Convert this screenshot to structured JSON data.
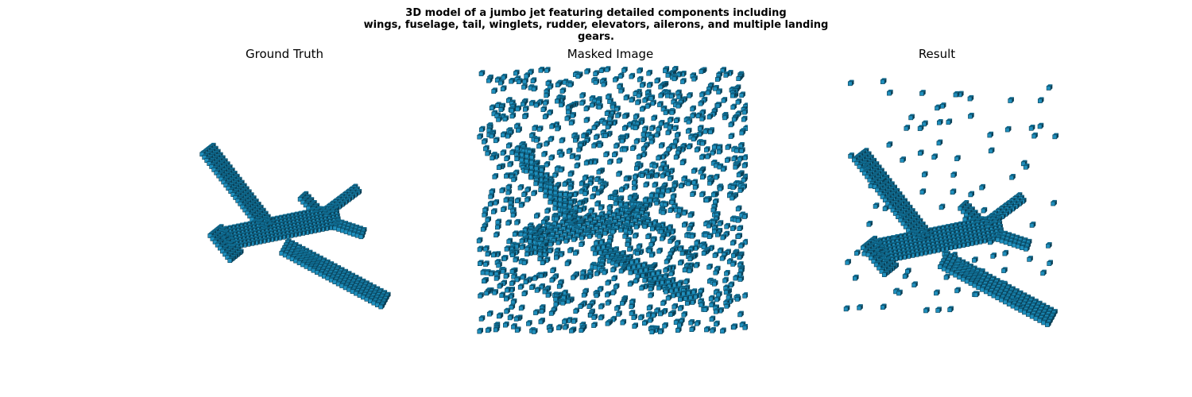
{
  "figure": {
    "suptitle_lines": [
      "3D model of a jumbo jet featuring detailed components including",
      "wings, fuselage, tail, winglets, rudder, elevators, ailerons, and multiple landing",
      "gears."
    ]
  },
  "panels": [
    {
      "title": "Ground Truth",
      "content": "voxel-airplane"
    },
    {
      "title": "Masked Image",
      "content": "scattered-voxel-cloud"
    },
    {
      "title": "Result",
      "content": "voxel-airplane-with-noise"
    }
  ],
  "colors": {
    "voxel_face": "#1f8fbd",
    "voxel_side": "#0f6a8f",
    "voxel_dark": "#0a3f55",
    "background": "#ffffff"
  }
}
